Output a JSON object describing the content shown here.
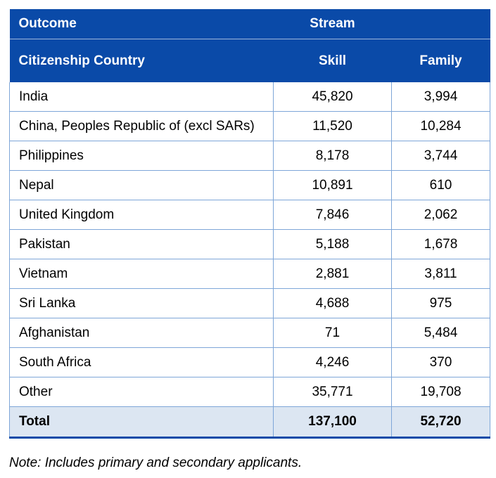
{
  "header": {
    "outcome": "Outcome",
    "stream": "Stream",
    "citizenship": "Citizenship Country",
    "skill": "Skill",
    "family": "Family"
  },
  "rows": [
    {
      "country": "India",
      "skill": "45,820",
      "family": "3,994"
    },
    {
      "country": "China, Peoples Republic of (excl SARs)",
      "skill": "11,520",
      "family": "10,284"
    },
    {
      "country": "Philippines",
      "skill": "8,178",
      "family": "3,744"
    },
    {
      "country": "Nepal",
      "skill": "10,891",
      "family": "610"
    },
    {
      "country": "United Kingdom",
      "skill": "7,846",
      "family": "2,062"
    },
    {
      "country": "Pakistan",
      "skill": "5,188",
      "family": "1,678"
    },
    {
      "country": "Vietnam",
      "skill": "2,881",
      "family": "3,811"
    },
    {
      "country": "Sri Lanka",
      "skill": "4,688",
      "family": "975"
    },
    {
      "country": "Afghanistan",
      "skill": "71",
      "family": "5,484"
    },
    {
      "country": "South Africa",
      "skill": "4,246",
      "family": "370"
    },
    {
      "country": "Other",
      "skill": "35,771",
      "family": "19,708"
    }
  ],
  "total": {
    "label": "Total",
    "skill": "137,100",
    "family": "52,720"
  },
  "note": "Note: Includes primary and secondary applicants.",
  "colors": {
    "header_bg": "#0a4aa8",
    "total_bg": "#dce6f2",
    "border": "#7ea6d8"
  }
}
